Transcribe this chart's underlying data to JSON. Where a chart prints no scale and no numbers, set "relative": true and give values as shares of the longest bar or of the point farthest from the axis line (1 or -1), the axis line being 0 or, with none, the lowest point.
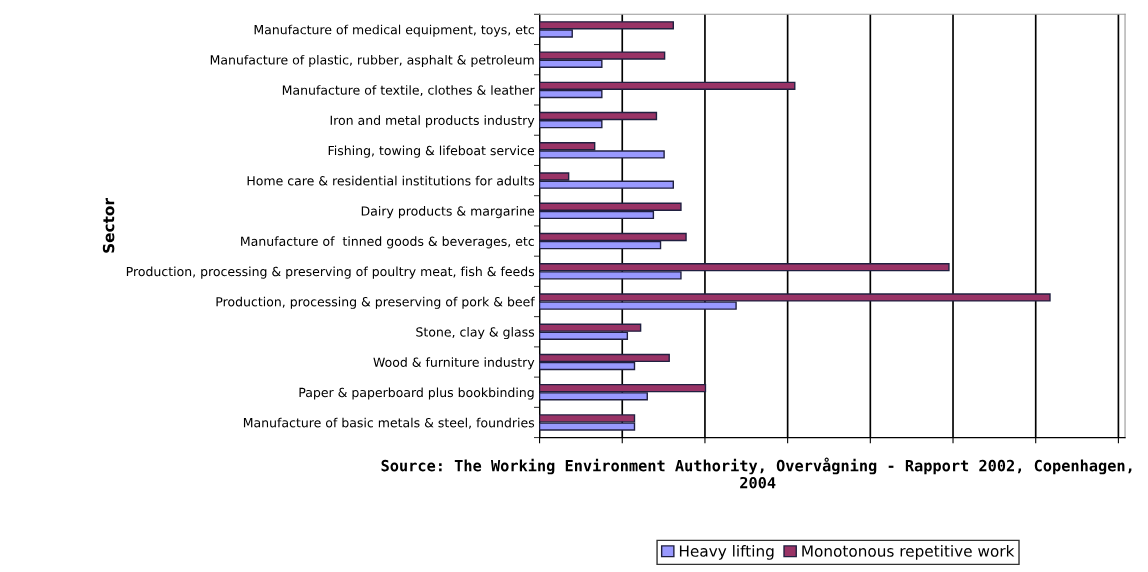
{
  "chart_data": {
    "type": "bar",
    "orientation": "horizontal",
    "relative": true,
    "ylabel": "Sector",
    "categories": [
      "Manufacture of medical equipment, toys, etc",
      "Manufacture of plastic, rubber, asphalt & petroleum",
      "Manufacture of textile, clothes & leather",
      "Iron and metal products industry",
      "Fishing, towing & lifeboat service",
      "Home care & residential institutions for adults",
      "Dairy products & margarine",
      "Manufacture of  tinned goods & beverages, etc",
      "Production, processing & preserving of poultry meat, fish & feeds",
      "Production, processing & preserving of pork & beef",
      "Stone, clay & glass",
      "Wood & furniture industry",
      "Paper & paperboard plus bookbinding",
      "Manufacture of basic metals & steel, foundries"
    ],
    "series": [
      {
        "name": "Heavy lifting",
        "color": "#9999ff",
        "values": [
          0.064,
          0.122,
          0.122,
          0.122,
          0.244,
          0.262,
          0.223,
          0.237,
          0.277,
          0.385,
          0.172,
          0.186,
          0.211,
          0.186
        ]
      },
      {
        "name": "Monotonous repetitive work",
        "color": "#993366",
        "values": [
          0.262,
          0.245,
          0.5,
          0.229,
          0.108,
          0.057,
          0.277,
          0.287,
          0.802,
          1,
          0.198,
          0.254,
          0.325,
          0.186
        ]
      }
    ],
    "grid": "x",
    "legend": "bottom",
    "annotations": [
      "Source: The Working Environment Authority, Overvågning - Rapport 2002, Copenhagen, 2004"
    ]
  }
}
